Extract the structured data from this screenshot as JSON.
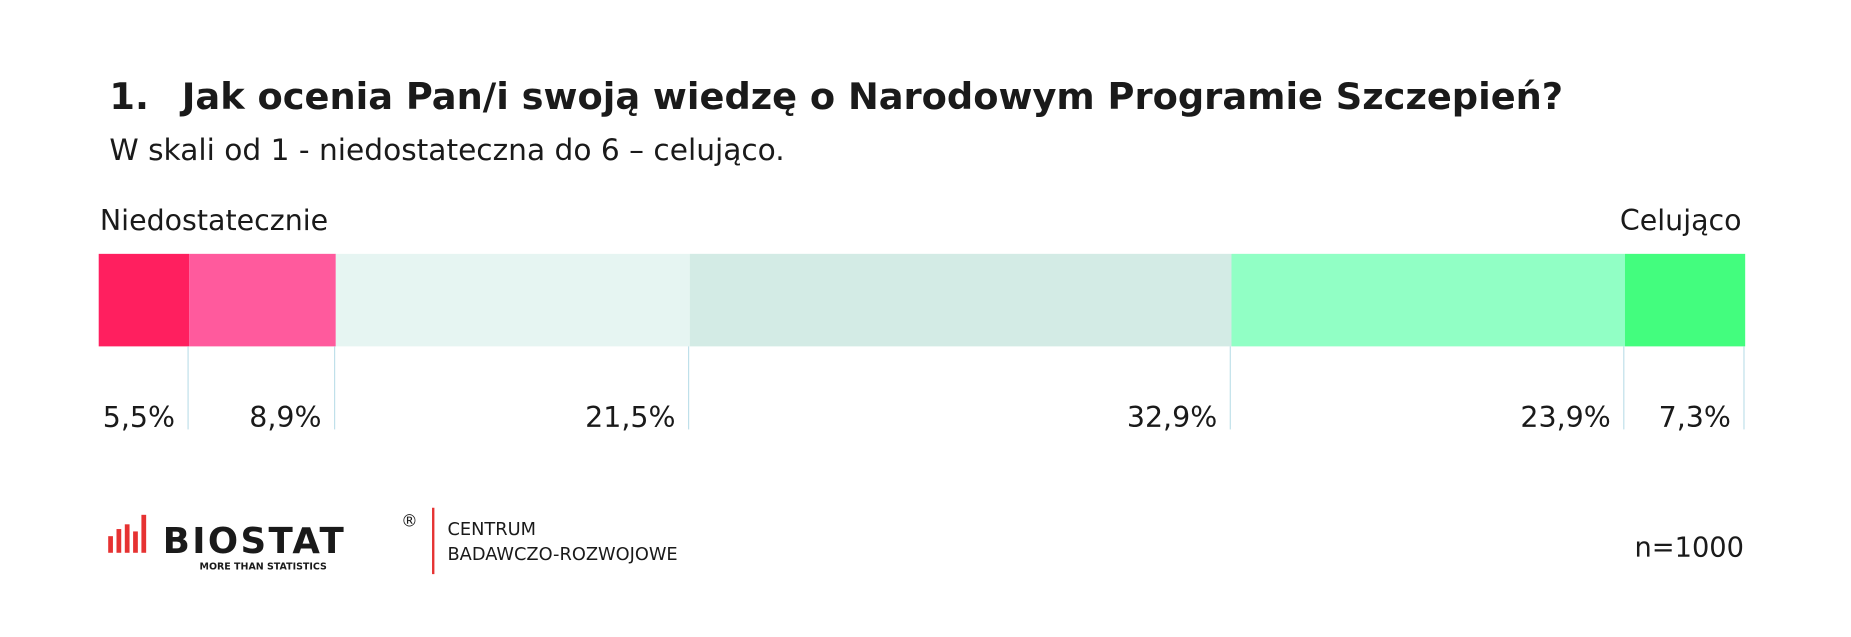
{
  "chart_data": {
    "type": "stacked-bar",
    "title_number": "1.",
    "title": "Jak ocenia Pan/i swoją wiedzę o Narodowym Programie Szczepień?",
    "subtitle": "W skali od 1 - niedostateczna do 6 – celująco.",
    "left_label": "Niedostatecznie",
    "right_label": "Celująco",
    "values": [
      5.5,
      8.9,
      21.5,
      32.9,
      23.9,
      7.3
    ],
    "value_labels": [
      "5,5%",
      "8,9%",
      "21,5%",
      "32,9%",
      "23,9%",
      "7,3%"
    ],
    "colors": [
      "#ff1f5f",
      "#ff5a9d",
      "#e6f5f2",
      "#d3ebe5",
      "#91ffc5",
      "#43fd7e"
    ],
    "xlim": [
      0,
      100
    ]
  },
  "footer": {
    "brand": "BIOSTAT",
    "registered": "®",
    "tagline": "MORE THAN STATISTICS",
    "division_line1": "CENTRUM",
    "division_line2": "BADAWCZO-ROZWOJOWE",
    "sample": "n=1000"
  }
}
